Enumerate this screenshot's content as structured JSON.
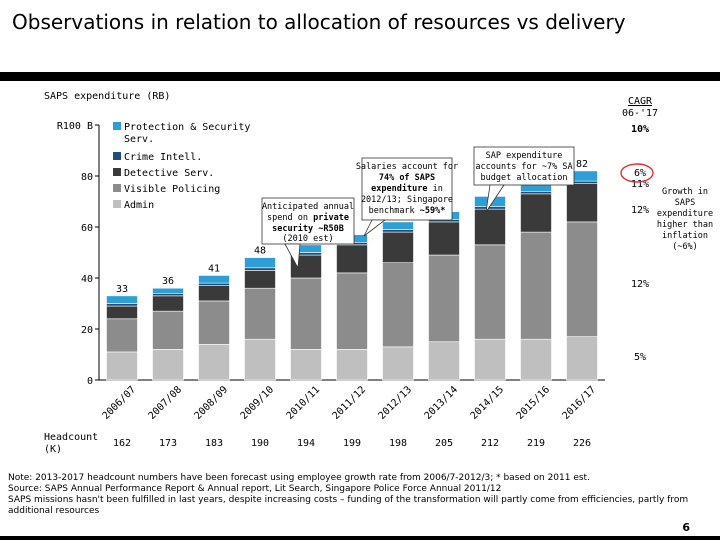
{
  "title": "Observations in relation to allocation of resources vs delivery",
  "chart_data": {
    "type": "bar",
    "stacked": true,
    "title": "SAPS expenditure (RB)",
    "y_tick_labels": [
      "0",
      "20",
      "40",
      "60",
      "80",
      "R100 B"
    ],
    "ylim": [
      0,
      100
    ],
    "categories": [
      "2006/07",
      "2007/08",
      "2008/09",
      "2009/10",
      "2010/11",
      "2011/12",
      "2012/13",
      "2013/14",
      "2014/15",
      "2015/16",
      "2016/17"
    ],
    "totals": [
      "33",
      "36",
      "41",
      "48",
      "",
      "",
      "",
      "",
      "",
      "",
      "82"
    ],
    "series": [
      {
        "name": "Admin",
        "color": "#bfbfbf",
        "values": [
          11,
          12,
          14,
          16,
          12,
          12,
          13,
          15,
          16,
          16,
          17
        ]
      },
      {
        "name": "Visible Policing",
        "color": "#8c8c8c",
        "values": [
          13,
          15,
          17,
          20,
          28,
          30,
          33,
          34,
          37,
          42,
          45
        ]
      },
      {
        "name": "Detective Serv.",
        "color": "#3a3a3a",
        "values": [
          5,
          6,
          6,
          7,
          9,
          11,
          12,
          13,
          14,
          15,
          15
        ]
      },
      {
        "name": "Crime Intell.",
        "color": "#1f4e79",
        "values": [
          1,
          1,
          1,
          1,
          1,
          1,
          1,
          1,
          1,
          1,
          1
        ]
      },
      {
        "name": "Protection & Security Serv.",
        "color": "#2e9fd6",
        "values": [
          3,
          2,
          3,
          4,
          3,
          3,
          3,
          3,
          4,
          4,
          4
        ]
      }
    ],
    "legend_position": "top-left",
    "cagr_header": [
      "CAGR",
      "06-'17"
    ],
    "cagr_values": [
      "10%",
      "6%",
      "11%",
      "12%",
      "12%",
      "5%"
    ],
    "headcount_label": [
      "Headcount",
      "(K)"
    ],
    "headcount": [
      "162",
      "173",
      "183",
      "190",
      "194",
      "199",
      "198",
      "205",
      "212",
      "219",
      "226"
    ],
    "annotations": {
      "anticipated": [
        "Anticipated annual",
        "spend on ",
        "private security ~R50B",
        "(2010 est)"
      ],
      "salaries": [
        "Salaries account for",
        "74% of SAPS",
        "expenditure",
        " in",
        "2012/13; Singapore",
        "benchmark ",
        "~59%*"
      ],
      "sap": [
        "SAP expenditure",
        "accounts for ~7% SA",
        "budget allocation"
      ],
      "growth": [
        "Growth in",
        "SAPS",
        "expenditure",
        "higher than",
        "inflation",
        "(~6%)"
      ]
    }
  },
  "notes": [
    "Note: 2013-2017 headcount numbers have been forecast using employee growth rate from 2006/7-2012/3; * based on 2011 est.",
    "Source: SAPS Annual Performance Report & Annual report, Lit Search, Singapore Police Force Annual 2011/12",
    "SAPS missions hasn't been fulfilled in last years, despite increasing costs – funding of the transformation will partly come from efficiencies, partly from additional resources"
  ],
  "page_number": "6"
}
